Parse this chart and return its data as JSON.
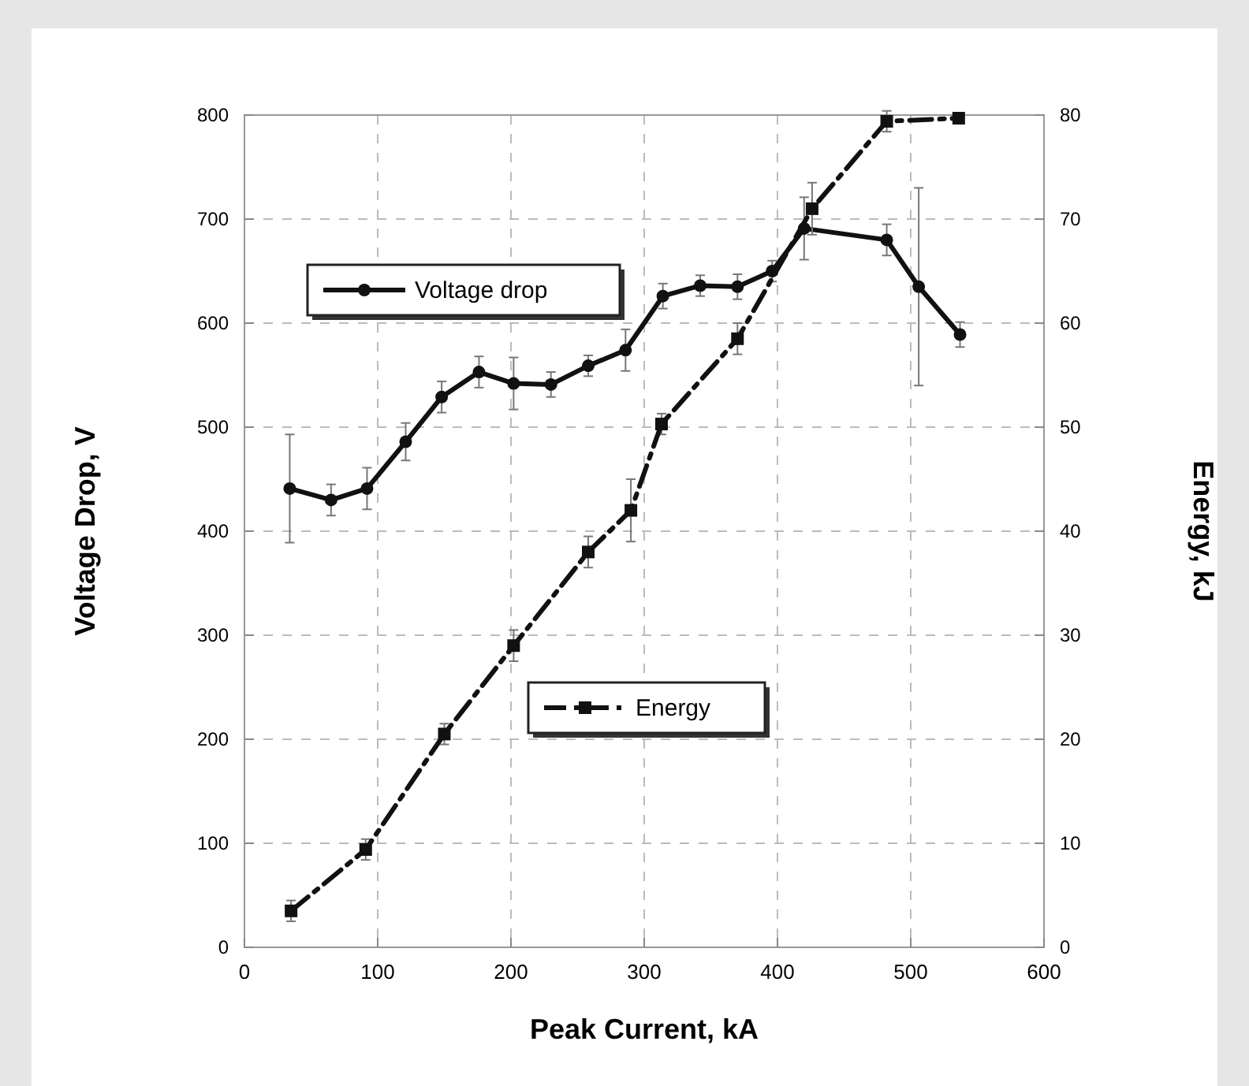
{
  "chart_data": {
    "type": "line",
    "xlabel": "Peak Current, kA",
    "ylabel": "Voltage Drop, V",
    "y2label": "Energy, kJ",
    "xlim": [
      0,
      600
    ],
    "xticks": [
      0,
      100,
      200,
      300,
      400,
      500,
      600
    ],
    "ylim": [
      0,
      800
    ],
    "yticks": [
      0,
      100,
      200,
      300,
      400,
      500,
      600,
      700,
      800
    ],
    "y2lim": [
      0,
      80
    ],
    "y2ticks": [
      0,
      10,
      20,
      30,
      40,
      50,
      60,
      70,
      80
    ],
    "grid": true,
    "legend": "top left",
    "series": [
      {
        "name": "Voltage drop",
        "color": "#111111",
        "marker": "circle",
        "line_style": "solid",
        "x": [
          34,
          65,
          92,
          121,
          148,
          176,
          202,
          230,
          258,
          286,
          314,
          342,
          370,
          396,
          420,
          482,
          506,
          537
        ],
        "values": [
          441,
          430,
          441,
          486,
          529,
          553,
          542,
          541,
          559,
          574,
          626,
          636,
          635,
          650,
          691,
          680,
          635,
          589
        ],
        "errors": [
          52,
          15,
          20,
          18,
          15,
          15,
          25,
          12,
          10,
          20,
          12,
          10,
          12,
          10,
          30,
          15,
          95,
          12
        ]
      },
      {
        "name": "Energy",
        "color": "#111111",
        "marker": "square",
        "line_style": "dashed",
        "axis": "y2",
        "x": [
          35,
          91,
          150,
          202,
          258,
          290,
          313,
          370,
          426,
          482,
          536
        ],
        "values": [
          3.5,
          9.4,
          20.5,
          29,
          38,
          42,
          50.3,
          58.5,
          71,
          79.4,
          79.7
        ],
        "errors": [
          1,
          1,
          1,
          1.5,
          1.5,
          3,
          1,
          1.5,
          2.5,
          1,
          0.5
        ]
      }
    ]
  }
}
